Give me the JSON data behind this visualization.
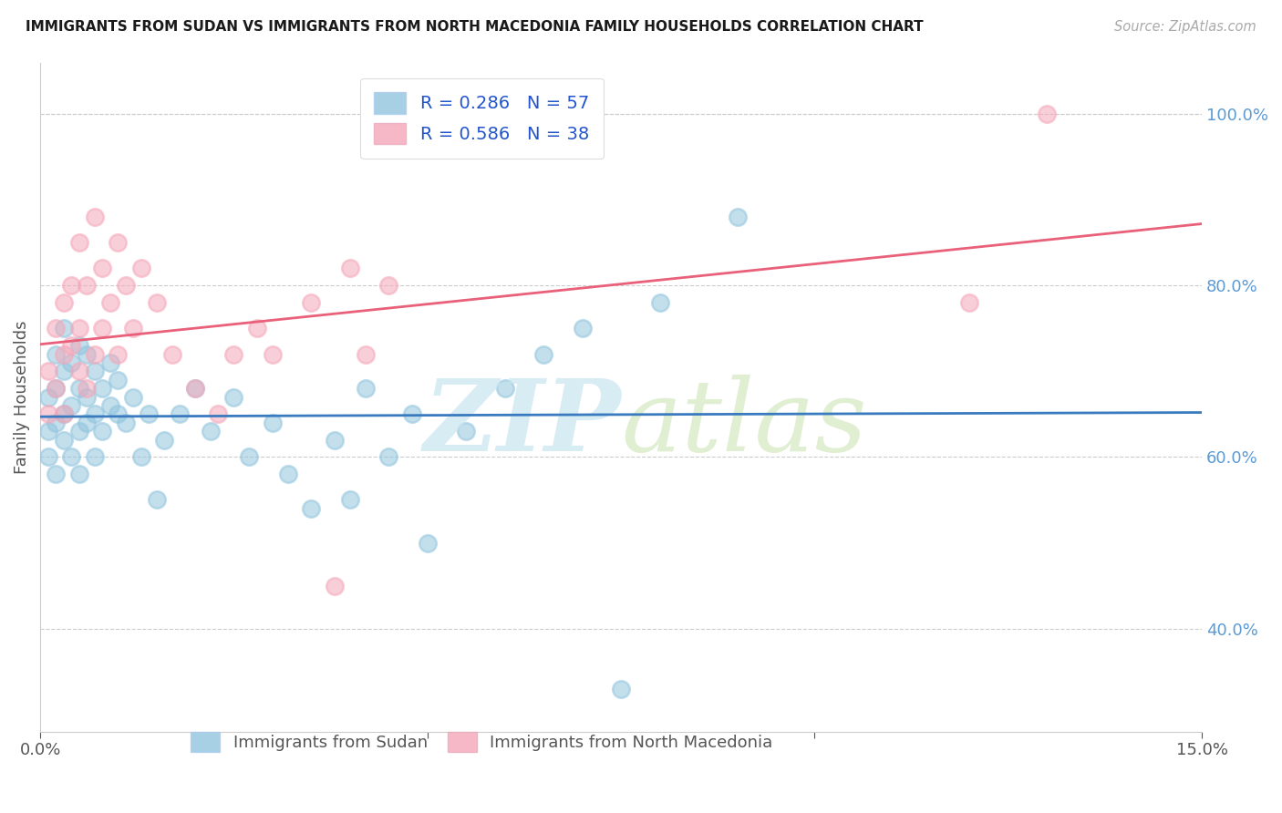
{
  "title": "IMMIGRANTS FROM SUDAN VS IMMIGRANTS FROM NORTH MACEDONIA FAMILY HOUSEHOLDS CORRELATION CHART",
  "source": "Source: ZipAtlas.com",
  "ylabel": "Family Households",
  "xlim": [
    0.0,
    0.15
  ],
  "ylim": [
    0.28,
    1.06
  ],
  "yticks_right": [
    0.4,
    0.6,
    0.8,
    1.0
  ],
  "ytick_labels_right": [
    "40.0%",
    "60.0%",
    "80.0%",
    "100.0%"
  ],
  "R_blue": 0.286,
  "N_blue": 57,
  "R_pink": 0.586,
  "N_pink": 38,
  "legend_labels": [
    "Immigrants from Sudan",
    "Immigrants from North Macedonia"
  ],
  "blue_color": "#92c5de",
  "pink_color": "#f4a7b9",
  "blue_line_color": "#3a7abf",
  "pink_line_color": "#e8607a",
  "blue_scatter_x": [
    0.001,
    0.001,
    0.001,
    0.002,
    0.002,
    0.002,
    0.002,
    0.003,
    0.003,
    0.003,
    0.003,
    0.004,
    0.004,
    0.004,
    0.005,
    0.005,
    0.005,
    0.005,
    0.006,
    0.006,
    0.006,
    0.007,
    0.007,
    0.007,
    0.008,
    0.008,
    0.009,
    0.009,
    0.01,
    0.01,
    0.011,
    0.012,
    0.013,
    0.014,
    0.015,
    0.016,
    0.018,
    0.02,
    0.022,
    0.025,
    0.027,
    0.03,
    0.032,
    0.035,
    0.038,
    0.04,
    0.042,
    0.045,
    0.048,
    0.05,
    0.055,
    0.06,
    0.065,
    0.07,
    0.075,
    0.08,
    0.09
  ],
  "blue_scatter_y": [
    0.63,
    0.67,
    0.6,
    0.68,
    0.64,
    0.72,
    0.58,
    0.7,
    0.65,
    0.75,
    0.62,
    0.66,
    0.71,
    0.6,
    0.68,
    0.63,
    0.73,
    0.58,
    0.67,
    0.64,
    0.72,
    0.65,
    0.7,
    0.6,
    0.63,
    0.68,
    0.66,
    0.71,
    0.65,
    0.69,
    0.64,
    0.67,
    0.6,
    0.65,
    0.55,
    0.62,
    0.65,
    0.68,
    0.63,
    0.67,
    0.6,
    0.64,
    0.58,
    0.54,
    0.62,
    0.55,
    0.68,
    0.6,
    0.65,
    0.5,
    0.63,
    0.68,
    0.72,
    0.75,
    0.33,
    0.78,
    0.88
  ],
  "pink_scatter_x": [
    0.001,
    0.001,
    0.002,
    0.002,
    0.003,
    0.003,
    0.003,
    0.004,
    0.004,
    0.005,
    0.005,
    0.005,
    0.006,
    0.006,
    0.007,
    0.007,
    0.008,
    0.008,
    0.009,
    0.01,
    0.01,
    0.011,
    0.012,
    0.013,
    0.015,
    0.017,
    0.02,
    0.023,
    0.025,
    0.028,
    0.03,
    0.035,
    0.038,
    0.04,
    0.042,
    0.045,
    0.12,
    0.13
  ],
  "pink_scatter_y": [
    0.65,
    0.7,
    0.68,
    0.75,
    0.72,
    0.78,
    0.65,
    0.8,
    0.73,
    0.7,
    0.75,
    0.85,
    0.68,
    0.8,
    0.72,
    0.88,
    0.75,
    0.82,
    0.78,
    0.72,
    0.85,
    0.8,
    0.75,
    0.82,
    0.78,
    0.72,
    0.68,
    0.65,
    0.72,
    0.75,
    0.72,
    0.78,
    0.45,
    0.82,
    0.72,
    0.8,
    0.78,
    1.0
  ],
  "background_color": "#ffffff",
  "grid_color": "#cccccc"
}
